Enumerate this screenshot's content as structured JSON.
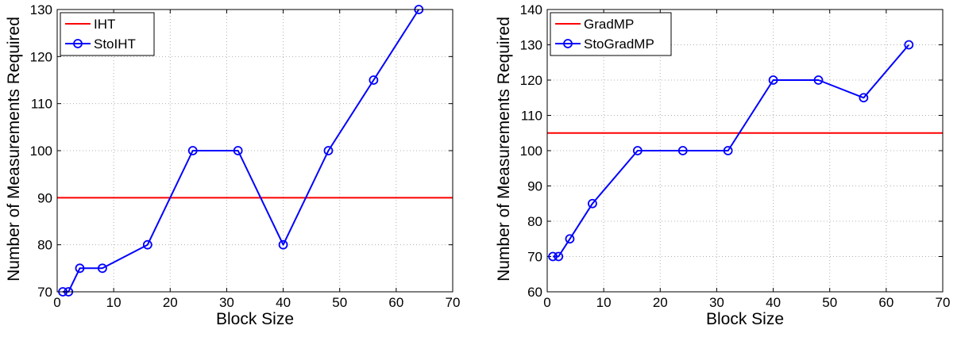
{
  "chart_data": [
    {
      "type": "line",
      "xlabel": "Block Size",
      "ylabel": "Number of Measurements Required",
      "xlim": [
        0,
        70
      ],
      "ylim": [
        70,
        130
      ],
      "xticks": [
        0,
        10,
        20,
        30,
        40,
        50,
        60,
        70
      ],
      "yticks": [
        70,
        80,
        90,
        100,
        110,
        120,
        130
      ],
      "grid": true,
      "legend_position": "top-left",
      "series": [
        {
          "name": "IHT",
          "kind": "hline",
          "color": "#ff0000",
          "value": 90
        },
        {
          "name": "StoIHT",
          "kind": "line",
          "color": "#0000ff",
          "marker": "circle",
          "x": [
            1,
            2,
            4,
            8,
            16,
            24,
            32,
            40,
            48,
            56,
            64
          ],
          "y": [
            70,
            70,
            75,
            75,
            80,
            100,
            100,
            80,
            100,
            115,
            130
          ]
        }
      ]
    },
    {
      "type": "line",
      "xlabel": "Block Size",
      "ylabel": "Number of Measurements Required",
      "xlim": [
        0,
        70
      ],
      "ylim": [
        60,
        140
      ],
      "xticks": [
        0,
        10,
        20,
        30,
        40,
        50,
        60,
        70
      ],
      "yticks": [
        60,
        70,
        80,
        90,
        100,
        110,
        120,
        130,
        140
      ],
      "grid": true,
      "legend_position": "top-left",
      "series": [
        {
          "name": "GradMP",
          "kind": "hline",
          "color": "#ff0000",
          "value": 105
        },
        {
          "name": "StoGradMP",
          "kind": "line",
          "color": "#0000ff",
          "marker": "circle",
          "x": [
            1,
            2,
            4,
            8,
            16,
            24,
            32,
            40,
            48,
            56,
            64
          ],
          "y": [
            70,
            70,
            75,
            85,
            100,
            100,
            100,
            120,
            120,
            115,
            130
          ]
        }
      ]
    }
  ]
}
